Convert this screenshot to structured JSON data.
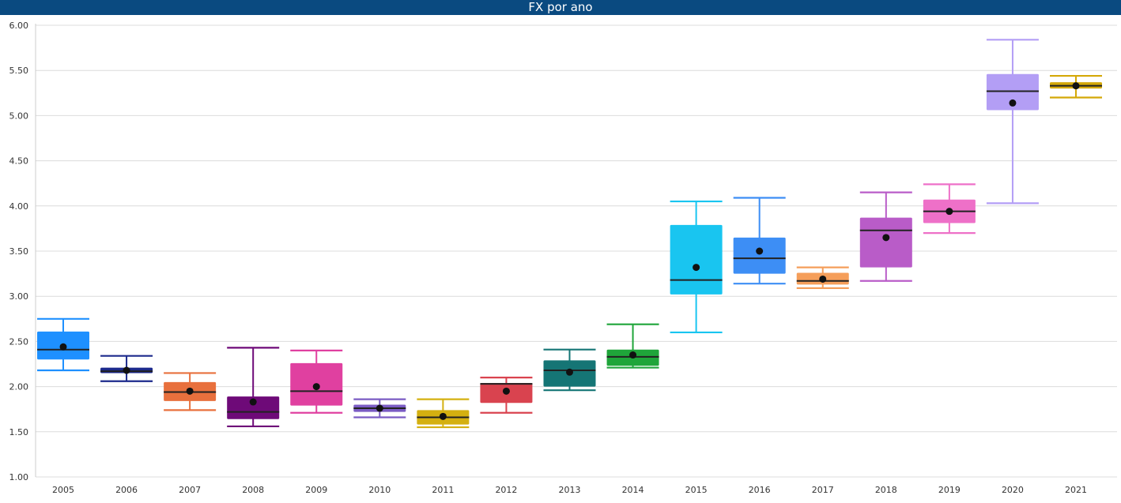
{
  "title": "FX por ano",
  "chart_data": {
    "type": "box",
    "title": "FX por ano",
    "xlabel": "",
    "ylabel": "",
    "ylim": [
      1.0,
      6.0
    ],
    "yticks": [
      "1.00",
      "1.50",
      "2.00",
      "2.50",
      "3.00",
      "3.50",
      "4.00",
      "4.50",
      "5.00",
      "5.50",
      "6.00"
    ],
    "grid": true,
    "categories": [
      "2005",
      "2006",
      "2007",
      "2008",
      "2009",
      "2010",
      "2011",
      "2012",
      "2013",
      "2014",
      "2015",
      "2016",
      "2017",
      "2018",
      "2019",
      "2020",
      "2021"
    ],
    "boxes": [
      {
        "year": "2005",
        "min": 2.18,
        "q1": 2.3,
        "median": 2.41,
        "q3": 2.61,
        "max": 2.75,
        "mean": 2.44,
        "color": "#1e90ff",
        "median_color": "#222222"
      },
      {
        "year": "2006",
        "min": 2.06,
        "q1": 2.15,
        "median": 2.17,
        "q3": 2.21,
        "max": 2.34,
        "mean": 2.18,
        "color": "#1c2a8c",
        "median_color": "#222222"
      },
      {
        "year": "2007",
        "min": 1.74,
        "q1": 1.84,
        "median": 1.94,
        "q3": 2.05,
        "max": 2.15,
        "mean": 1.95,
        "color": "#e8703d",
        "median_color": "#222222"
      },
      {
        "year": "2008",
        "min": 1.56,
        "q1": 1.64,
        "median": 1.72,
        "q3": 1.89,
        "max": 2.43,
        "mean": 1.83,
        "color": "#6e0a78",
        "median_color": "#222222"
      },
      {
        "year": "2009",
        "min": 1.71,
        "q1": 1.79,
        "median": 1.95,
        "q3": 2.26,
        "max": 2.4,
        "mean": 2.0,
        "color": "#e040a0",
        "median_color": "#222222"
      },
      {
        "year": "2010",
        "min": 1.66,
        "q1": 1.72,
        "median": 1.76,
        "q3": 1.8,
        "max": 1.86,
        "mean": 1.76,
        "color": "#7b5cc4",
        "median_color": "#222222"
      },
      {
        "year": "2011",
        "min": 1.55,
        "q1": 1.58,
        "median": 1.66,
        "q3": 1.74,
        "max": 1.86,
        "mean": 1.67,
        "color": "#d4b010",
        "median_color": "#222222"
      },
      {
        "year": "2012",
        "min": 1.71,
        "q1": 1.82,
        "median": 2.03,
        "q3": 2.04,
        "max": 2.1,
        "mean": 1.95,
        "color": "#d9434f",
        "median_color": "#222222"
      },
      {
        "year": "2013",
        "min": 1.96,
        "q1": 2.0,
        "median": 2.18,
        "q3": 2.29,
        "max": 2.41,
        "mean": 2.16,
        "color": "#157575",
        "median_color": "#222222"
      },
      {
        "year": "2014",
        "min": 2.21,
        "q1": 2.23,
        "median": 2.33,
        "q3": 2.41,
        "max": 2.69,
        "mean": 2.35,
        "color": "#1fa53a",
        "median_color": "#222222"
      },
      {
        "year": "2015",
        "min": 2.6,
        "q1": 3.02,
        "median": 3.18,
        "q3": 3.79,
        "max": 4.05,
        "mean": 3.32,
        "color": "#19c5f0",
        "median_color": "#222222"
      },
      {
        "year": "2016",
        "min": 3.14,
        "q1": 3.25,
        "median": 3.42,
        "q3": 3.65,
        "max": 4.09,
        "mean": 3.5,
        "color": "#3d8ef5",
        "median_color": "#222222"
      },
      {
        "year": "2017",
        "min": 3.09,
        "q1": 3.13,
        "median": 3.17,
        "q3": 3.26,
        "max": 3.32,
        "mean": 3.19,
        "color": "#f59e5a",
        "median_color": "#222222"
      },
      {
        "year": "2018",
        "min": 3.17,
        "q1": 3.32,
        "median": 3.73,
        "q3": 3.87,
        "max": 4.15,
        "mean": 3.65,
        "color": "#b95cc8",
        "median_color": "#222222"
      },
      {
        "year": "2019",
        "min": 3.7,
        "q1": 3.81,
        "median": 3.94,
        "q3": 4.07,
        "max": 4.24,
        "mean": 3.94,
        "color": "#ee70c8",
        "median_color": "#222222"
      },
      {
        "year": "2020",
        "min": 4.03,
        "q1": 5.06,
        "median": 5.27,
        "q3": 5.46,
        "max": 5.84,
        "mean": 5.14,
        "color": "#b39ef5",
        "median_color": "#222222"
      },
      {
        "year": "2021",
        "min": 5.2,
        "q1": 5.3,
        "median": 5.33,
        "q3": 5.37,
        "max": 5.44,
        "mean": 5.33,
        "color": "#d4a808",
        "median_color": "#222222"
      }
    ]
  },
  "colors": {
    "title_bar": "#0a4a80",
    "grid": "#dcdcdc",
    "axis_text": "#333333",
    "mean_dot": "#111111"
  }
}
